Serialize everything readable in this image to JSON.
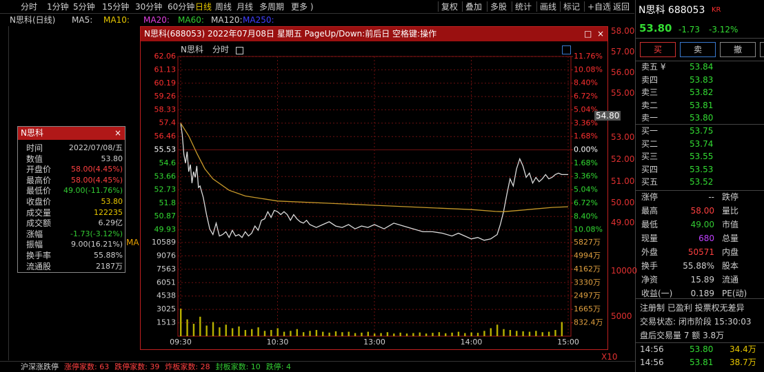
{
  "toolbar": {
    "tabs": [
      "分时",
      "1分钟",
      "5分钟",
      "15分钟",
      "30分钟",
      "60分钟",
      "日线",
      "周线",
      "月线",
      "多周期",
      "更多 )"
    ],
    "active": 6,
    "buttons": [
      "复权",
      "叠加",
      "多股",
      "统计",
      "画线",
      "标记",
      "+自选",
      "返回"
    ]
  },
  "kline_header": {
    "title": "N思科(日线)",
    "ma": [
      {
        "label": "MA5:",
        "color": "#d0d0d0"
      },
      {
        "label": "MA10:",
        "color": "#e8c800"
      },
      {
        "label": "MA20:",
        "color": "#e040e0"
      },
      {
        "label": "MA60:",
        "color": "#33cc33"
      },
      {
        "label": "MA120:",
        "color": "#d0d0d0"
      },
      {
        "label": "MA250:",
        "color": "#4040ff"
      }
    ]
  },
  "kline_axis": {
    "labels": [
      "58.00",
      "57.00",
      "56.00",
      "55.00",
      "53.00",
      "52.00",
      "51.00",
      "50.00",
      "49.00",
      "10000",
      "5000"
    ],
    "cursor": "54.80",
    "zoom": "X10",
    "ma_tag": "MA"
  },
  "info_box": {
    "title": "N思科",
    "rows": [
      {
        "label": "时间",
        "value": "2022/07/08/五",
        "color": "#d0d0d0"
      },
      {
        "label": "数值",
        "value": "53.80",
        "color": "#d0d0d0"
      },
      {
        "label": "开盘价",
        "value": "58.00(4.45%)",
        "color": "#ff4040"
      },
      {
        "label": "最高价",
        "value": "58.00(4.45%)",
        "color": "#ff4040"
      },
      {
        "label": "最低价",
        "value": "49.00(-11.76%)",
        "color": "#33cc33"
      },
      {
        "label": "收盘价",
        "value": "53.80",
        "color": "#e8c800"
      },
      {
        "label": "成交量",
        "value": "122235",
        "color": "#e8c800"
      },
      {
        "label": "成交额",
        "value": "6.29亿",
        "color": "#d0d0d0"
      },
      {
        "label": "涨幅",
        "value": "-1.73(-3.12%)",
        "color": "#33cc33"
      },
      {
        "label": "振幅",
        "value": "9.00(16.21%)",
        "color": "#d0d0d0"
      },
      {
        "label": "换手率",
        "value": "55.88%",
        "color": "#d0d0d0"
      },
      {
        "label": "流通股",
        "value": "2187万",
        "color": "#d0d0d0"
      }
    ]
  },
  "popup": {
    "title": "N思科(688053) 2022年07月08日 星期五 PageUp/Down:前后日 空格键:操作",
    "name": "N思科",
    "tab": "分时"
  },
  "chart_data": [
    {
      "type": "line",
      "xlim": [
        0,
        240
      ],
      "xticks": [
        {
          "value": 0,
          "label": "09:30"
        },
        {
          "value": 60,
          "label": "10:30"
        },
        {
          "value": 120,
          "label": "13:00"
        },
        {
          "value": 180,
          "label": "14:00"
        },
        {
          "value": 240,
          "label": "15:00"
        }
      ],
      "ylim": [
        49.0,
        62.06
      ],
      "yticks": [
        62.06,
        61.13,
        60.19,
        59.26,
        58.33,
        57.4,
        56.46,
        55.53,
        54.6,
        53.66,
        52.73,
        51.8,
        50.87,
        49.93
      ],
      "y2lim": [
        -11.76,
        11.76
      ],
      "y2ticks": [
        {
          "value": 11.76,
          "label": "11.76%"
        },
        {
          "value": 10.08,
          "label": "10.08%"
        },
        {
          "value": 8.4,
          "label": "8.40%"
        },
        {
          "value": 6.72,
          "label": "6.72%"
        },
        {
          "value": 5.04,
          "label": "5.04%"
        },
        {
          "value": 3.36,
          "label": "3.36%"
        },
        {
          "value": 1.68,
          "label": "1.68%"
        },
        {
          "value": 0,
          "label": "0.00%"
        },
        {
          "value": -1.68,
          "label": "1.68%"
        },
        {
          "value": -3.36,
          "label": "3.36%"
        },
        {
          "value": -5.04,
          "label": "5.04%"
        },
        {
          "value": -6.72,
          "label": "6.72%"
        },
        {
          "value": -8.4,
          "label": "8.40%"
        },
        {
          "value": -10.08,
          "label": "10.08%"
        }
      ],
      "grid": true,
      "series": [
        {
          "color": "#dcdcdc",
          "x": [
            0,
            1,
            2,
            3,
            4,
            5,
            6,
            7,
            8,
            9,
            10,
            11,
            12,
            14,
            16,
            18,
            20,
            22,
            24,
            26,
            28,
            30,
            32,
            34,
            36,
            38,
            40,
            42,
            44,
            46,
            48,
            50,
            52,
            54,
            56,
            58,
            60,
            62,
            64,
            66,
            68,
            70,
            72,
            74,
            76,
            78,
            80,
            84,
            88,
            92,
            96,
            100,
            104,
            108,
            112,
            116,
            120,
            126,
            132,
            138,
            144,
            150,
            156,
            162,
            168,
            172,
            176,
            180,
            184,
            188,
            192,
            196,
            198,
            200,
            202,
            204,
            206,
            208,
            210,
            212,
            214,
            216,
            218,
            220,
            222,
            224,
            226,
            228,
            230,
            232,
            234,
            236,
            240
          ],
          "values": [
            57.4,
            56.6,
            55.2,
            54.6,
            55.4,
            54.0,
            54.5,
            53.2,
            54.0,
            53.6,
            54.4,
            52.9,
            53.0,
            52.2,
            51.0,
            50.0,
            49.6,
            50.4,
            49.5,
            49.6,
            49.8,
            49.4,
            49.9,
            49.5,
            49.6,
            49.4,
            49.8,
            49.5,
            49.7,
            50.2,
            49.9,
            50.6,
            50.7,
            51.2,
            50.8,
            51.3,
            51.2,
            51.0,
            51.2,
            51.0,
            50.6,
            51.0,
            50.7,
            50.5,
            50.4,
            50.6,
            50.3,
            50.1,
            50.3,
            50.5,
            50.2,
            50.1,
            50.3,
            50.0,
            50.2,
            50.1,
            50.3,
            50.0,
            50.4,
            50.2,
            50.0,
            49.8,
            49.8,
            49.7,
            49.5,
            49.7,
            49.5,
            49.3,
            49.4,
            49.2,
            49.3,
            49.6,
            50.3,
            51.2,
            52.4,
            53.5,
            53.0,
            54.2,
            54.9,
            54.4,
            53.6,
            53.9,
            53.2,
            53.6,
            53.3,
            53.5,
            53.8,
            53.5,
            53.6,
            53.8,
            53.9,
            53.8,
            53.8
          ]
        },
        {
          "color": "#c89a2a",
          "x": [
            0,
            5,
            10,
            15,
            20,
            30,
            40,
            60,
            90,
            120,
            150,
            180,
            195,
            200,
            210,
            220,
            230,
            240
          ],
          "values": [
            57.4,
            56.5,
            55.3,
            54.2,
            53.5,
            52.7,
            52.3,
            51.95,
            51.8,
            51.65,
            51.5,
            51.35,
            51.22,
            51.2,
            51.3,
            51.4,
            51.5,
            51.55
          ]
        }
      ]
    },
    {
      "type": "bar",
      "color": "#b8b000",
      "xlim": [
        0,
        240
      ],
      "ylim": [
        0,
        10589
      ],
      "yticks": [
        10589,
        9076,
        7563,
        6051,
        4538,
        3025,
        1513
      ],
      "y2lim": [
        0,
        5827
      ],
      "y2ticks": [
        {
          "value": 5827,
          "label": "5827万"
        },
        {
          "value": 4994,
          "label": "4994万"
        },
        {
          "value": 4162,
          "label": "4162万"
        },
        {
          "value": 3330,
          "label": "3330万"
        },
        {
          "value": 2497,
          "label": "2497万"
        },
        {
          "value": 1665,
          "label": "1665万"
        },
        {
          "value": 832.4,
          "label": "832.4万"
        }
      ],
      "x": [
        0,
        4,
        8,
        12,
        16,
        20,
        24,
        28,
        32,
        36,
        40,
        44,
        48,
        52,
        56,
        60,
        64,
        68,
        72,
        76,
        80,
        84,
        88,
        92,
        96,
        100,
        104,
        108,
        112,
        116,
        120,
        124,
        128,
        132,
        136,
        140,
        144,
        148,
        152,
        156,
        160,
        164,
        168,
        172,
        176,
        180,
        184,
        188,
        192,
        196,
        200,
        204,
        208,
        212,
        216,
        220,
        224,
        228,
        232,
        236
      ],
      "values": [
        3100,
        1900,
        1400,
        2200,
        1200,
        1600,
        1000,
        1300,
        900,
        1100,
        700,
        800,
        1000,
        600,
        700,
        900,
        500,
        600,
        800,
        450,
        600,
        700,
        500,
        400,
        550,
        450,
        500,
        350,
        400,
        500,
        300,
        350,
        450,
        300,
        400,
        300,
        350,
        420,
        300,
        380,
        450,
        330,
        400,
        500,
        350,
        420,
        380,
        600,
        900,
        1300,
        800,
        700,
        600,
        550,
        500,
        600,
        450,
        500,
        700,
        1600
      ]
    }
  ],
  "quote": {
    "name": "N思科 688053",
    "tag": "KR",
    "price": "53.80",
    "change": "-1.73",
    "pct": "-3.12%",
    "buttons": [
      "买",
      "卖",
      "撤"
    ],
    "asks": [
      {
        "label": "卖五 ¥",
        "price": "53.84"
      },
      {
        "label": "卖四",
        "price": "53.83"
      },
      {
        "label": "卖三",
        "price": "53.82"
      },
      {
        "label": "卖二",
        "price": "53.81"
      },
      {
        "label": "卖一",
        "price": "53.80"
      }
    ],
    "bids": [
      {
        "label": "买一",
        "price": "53.75"
      },
      {
        "label": "买二",
        "price": "53.74"
      },
      {
        "label": "买三",
        "price": "53.55"
      },
      {
        "label": "买四",
        "price": "53.53"
      },
      {
        "label": "买五",
        "price": "53.52"
      }
    ],
    "stats": [
      {
        "label": "涨停",
        "value": "--",
        "color": "#d0d0d0",
        "label2": "跌停"
      },
      {
        "label": "最高",
        "value": "58.00",
        "color": "#ff4040",
        "label2": "量比"
      },
      {
        "label": "最低",
        "value": "49.00",
        "color": "#33cc33",
        "label2": "市值"
      },
      {
        "label": "现量",
        "value": "680",
        "color": "#c040ff",
        "label2": "总量"
      },
      {
        "label": "外盘",
        "value": "50571",
        "color": "#ff4040",
        "label2": "内盘"
      },
      {
        "label": "换手",
        "value": "55.88%",
        "color": "#d0d0d0",
        "label2": "股本"
      },
      {
        "label": "净资",
        "value": "15.89",
        "color": "#d0d0d0",
        "label2": "流通"
      },
      {
        "label": "收益(一)",
        "value": "0.189",
        "color": "#d0d0d0",
        "label2": "PE(动)"
      }
    ],
    "notes": [
      "注册制 已盈利 投票权无差异",
      "交易状态: 闭市阶段 15:30:03",
      "盘后交易量 7 额 3.8万"
    ],
    "trades": [
      [
        "14:56",
        "53.80",
        "34.4万"
      ],
      [
        "14:56",
        "53.81",
        "38.7万"
      ]
    ]
  },
  "status_bar": [
    {
      "text": "沪深涨跌停",
      "color": "#d0d0d0"
    },
    {
      "text": "涨停家数: 63",
      "color": "#ff4040"
    },
    {
      "text": "跌停家数: 39",
      "color": "#ff4040"
    },
    {
      "text": "炸板家数: 28",
      "color": "#ff4040"
    },
    {
      "text": "封板家数: 10",
      "color": "#33cc33"
    },
    {
      "text": "跌停: 4",
      "color": "#33cc33"
    }
  ]
}
